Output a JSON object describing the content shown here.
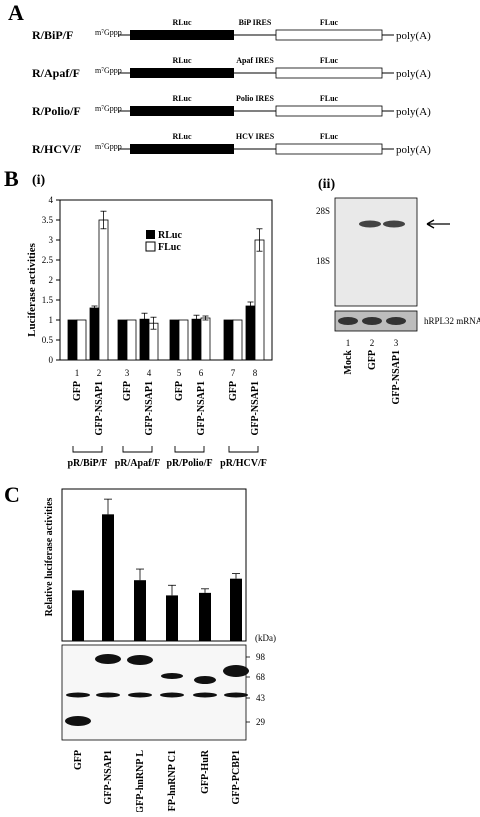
{
  "panelA": {
    "letter": "A",
    "cap": "m⁷Gppp",
    "rluc_label": "RLuc",
    "fluc_label": "FLuc",
    "polyA": "poly(A)",
    "constructs": [
      {
        "name": "R/BiP/F",
        "ires": "BiP IRES"
      },
      {
        "name": "R/Apaf/F",
        "ires": "Apaf IRES"
      },
      {
        "name": "R/Polio/F",
        "ires": "Polio IRES"
      },
      {
        "name": "R/HCV/F",
        "ires": "HCV IRES"
      }
    ]
  },
  "panelB": {
    "letter": "B",
    "sub_i": "(i)",
    "sub_ii": "(ii)",
    "ylabel": "Luciferase activities",
    "legend": [
      "RLuc",
      "FLuc"
    ],
    "lanes": [
      "1",
      "2",
      "3",
      "4",
      "5",
      "6",
      "7",
      "8"
    ],
    "lane_labels": [
      "GFP",
      "GFP-NSAP1",
      "GFP",
      "GFP-NSAP1",
      "GFP",
      "GFP-NSAP1",
      "GFP",
      "GFP-NSAP1"
    ],
    "groups": [
      "pR/BiP/F",
      "pR/Apaf/F",
      "pR/Polio/F",
      "pR/HCV/F"
    ],
    "blot": {
      "marker_28s": "28S",
      "marker_18s": "18S",
      "loading_label": "hRPL32 mRNA",
      "lanes": [
        "1",
        "2",
        "3"
      ],
      "lane_labels": [
        "Mock",
        "GFP",
        "GFP-NSAP1"
      ]
    }
  },
  "panelC": {
    "letter": "C",
    "ylabel": "Relative luciferase activities",
    "kda_label": "(kDa)",
    "mw": [
      "98",
      "68",
      "43",
      "29"
    ],
    "lane_labels": [
      "GFP",
      "GFP-NSAP1",
      "GFP-hnRNP L",
      "GFP-hnRNP C1",
      "GFP-HuR",
      "GFP-PCBP1"
    ]
  },
  "chart_data": [
    {
      "type": "bar",
      "ylabel": "Luciferase activities",
      "ylim": [
        0,
        4
      ],
      "yticks": [
        "0",
        "0.5",
        "1",
        "1.5",
        "2",
        "2.5",
        "3",
        "3.5",
        "4"
      ],
      "categories": [
        "1",
        "2",
        "3",
        "4",
        "5",
        "6",
        "7",
        "8"
      ],
      "series": [
        {
          "name": "RLuc",
          "color": "#000000",
          "values": [
            1.0,
            1.3,
            1.0,
            1.02,
            1.0,
            1.02,
            1.0,
            1.35
          ],
          "errors": [
            0,
            0.05,
            0,
            0.15,
            0,
            0.1,
            0,
            0.1
          ]
        },
        {
          "name": "FLuc",
          "color": "#ffffff",
          "values": [
            1.0,
            3.5,
            1.0,
            0.92,
            1.0,
            1.05,
            1.0,
            3.0
          ],
          "errors": [
            0,
            0.22,
            0,
            0.15,
            0,
            0.05,
            0,
            0.28
          ]
        }
      ],
      "legend": "top-right"
    },
    {
      "type": "bar",
      "ylabel": "Relative luciferase activities",
      "ylim": [
        0,
        3
      ],
      "categories": [
        "GFP",
        "GFP-NSAP1",
        "GFP-hnRNP L",
        "GFP-hnRNP C1",
        "GFP-HuR",
        "GFP-PCBP1"
      ],
      "values": [
        1.0,
        2.5,
        1.2,
        0.9,
        0.95,
        1.23
      ],
      "errors": [
        0,
        0.3,
        0.22,
        0.2,
        0.08,
        0.1
      ]
    }
  ]
}
